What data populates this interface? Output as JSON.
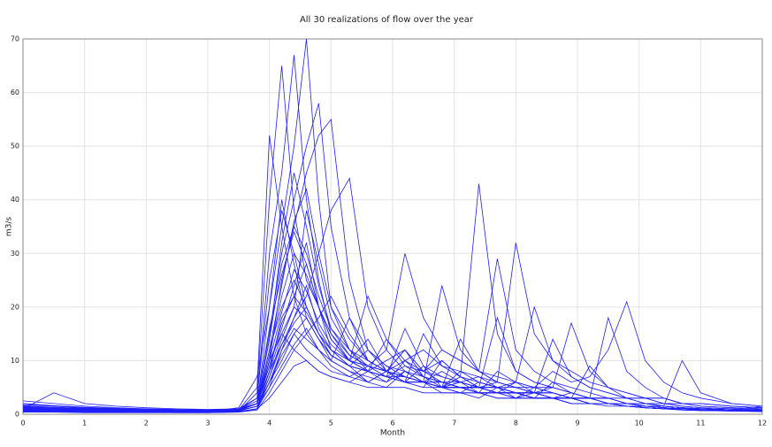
{
  "chart_data": {
    "type": "line",
    "title": "All 30 realizations of flow over the year",
    "x_label": "Month",
    "y_label": "m3/s",
    "color": "#1f1fff",
    "grid": true,
    "xlim": [
      0,
      12
    ],
    "xticks": [
      0,
      1,
      2,
      3,
      4,
      5,
      6,
      7,
      8,
      9,
      10,
      11,
      12
    ],
    "ylim": [
      0,
      70
    ],
    "yticks": [
      0,
      10,
      20,
      30,
      40,
      50,
      60,
      70
    ],
    "x": [
      0,
      0.5,
      1,
      1.5,
      2,
      2.5,
      3,
      3.5,
      3.8,
      4,
      4.2,
      4.4,
      4.6,
      4.8,
      5,
      5.3,
      5.6,
      5.9,
      6.2,
      6.5,
      6.8,
      7.1,
      7.4,
      7.7,
      8,
      8.3,
      8.6,
      8.9,
      9.2,
      9.5,
      9.8,
      10.1,
      10.4,
      10.7,
      11,
      11.5,
      12
    ],
    "series": [
      {
        "values": [
          2,
          1.5,
          1.2,
          1,
          0.8,
          0.6,
          0.5,
          0.6,
          2,
          20,
          35,
          50,
          70,
          40,
          20,
          12,
          8,
          6,
          10,
          7,
          5,
          4,
          6,
          5,
          3,
          4,
          3,
          2,
          2,
          1.5,
          1.5,
          1.2,
          1,
          1,
          0.8,
          0.7,
          0.6
        ]
      },
      {
        "values": [
          1.5,
          1.2,
          1,
          0.8,
          0.7,
          0.6,
          0.5,
          0.8,
          3,
          30,
          45,
          67,
          40,
          25,
          15,
          10,
          14,
          8,
          6,
          9,
          5,
          6,
          4,
          3,
          3,
          5,
          4,
          3,
          2,
          2,
          1.5,
          1.2,
          1,
          1,
          0.8,
          0.6,
          1
        ]
      },
      {
        "values": [
          1,
          0.8,
          0.7,
          0.6,
          0.5,
          0.5,
          0.4,
          0.6,
          4,
          40,
          65,
          38,
          25,
          20,
          12,
          9,
          6,
          8,
          12,
          7,
          6,
          5,
          4,
          8,
          6,
          4,
          3,
          3,
          2,
          2,
          1.5,
          1.2,
          1,
          0.8,
          0.7,
          0.6,
          0.5
        ]
      },
      {
        "values": [
          1.2,
          1,
          0.9,
          0.8,
          0.7,
          0.6,
          0.6,
          1,
          3,
          15,
          30,
          40,
          50,
          58,
          35,
          18,
          10,
          8,
          6,
          5,
          10,
          7,
          5,
          4,
          4,
          3,
          6,
          4,
          3,
          2,
          2,
          1.5,
          1.2,
          1,
          1,
          0.8,
          0.7
        ]
      },
      {
        "values": [
          0.8,
          0.7,
          0.6,
          0.5,
          0.5,
          0.4,
          0.4,
          0.5,
          1,
          10,
          25,
          35,
          45,
          52,
          55,
          25,
          12,
          9,
          7,
          6,
          5,
          8,
          6,
          5,
          4,
          3,
          3,
          4,
          3,
          2,
          2,
          1.5,
          1.2,
          1,
          0.8,
          0.7,
          0.6
        ]
      },
      {
        "values": [
          1,
          0.9,
          0.8,
          0.7,
          0.6,
          0.5,
          0.5,
          0.8,
          5,
          52,
          35,
          22,
          15,
          12,
          10,
          8,
          6,
          5,
          8,
          6,
          4,
          4,
          3,
          5,
          4,
          3,
          3,
          2,
          2,
          2,
          1.5,
          1.2,
          1,
          0.8,
          0.7,
          0.6,
          0.5
        ]
      },
      {
        "values": [
          0.6,
          0.5,
          0.5,
          0.4,
          0.4,
          0.4,
          0.4,
          0.5,
          1,
          5,
          12,
          18,
          22,
          30,
          38,
          44,
          20,
          12,
          8,
          6,
          5,
          7,
          5,
          4,
          4,
          3,
          3,
          2,
          2,
          2,
          1.5,
          1.5,
          1.2,
          1,
          1,
          0.8,
          0.7
        ]
      },
      {
        "values": [
          1.5,
          1.2,
          1,
          0.9,
          0.8,
          0.7,
          0.6,
          0.8,
          2,
          8,
          15,
          12,
          10,
          8,
          7,
          6,
          8,
          10,
          12,
          8,
          10,
          7,
          43,
          15,
          8,
          6,
          5,
          4,
          3,
          3,
          2,
          2,
          1.5,
          1.2,
          1,
          0.8,
          0.7
        ]
      },
      {
        "values": [
          0.5,
          0.5,
          0.4,
          0.4,
          0.4,
          0.3,
          0.3,
          0.4,
          1,
          6,
          10,
          15,
          12,
          10,
          8,
          7,
          9,
          8,
          10,
          12,
          9,
          8,
          7,
          6,
          32,
          15,
          10,
          8,
          6,
          5,
          4,
          3,
          3,
          2,
          2,
          1.5,
          1.2
        ]
      },
      {
        "values": [
          1,
          0.9,
          0.8,
          0.7,
          0.6,
          0.5,
          0.5,
          0.7,
          2,
          12,
          20,
          25,
          20,
          15,
          12,
          10,
          9,
          12,
          30,
          18,
          12,
          10,
          8,
          7,
          6,
          5,
          5,
          4,
          3,
          3,
          2,
          2,
          1.5,
          1.2,
          1,
          0.8,
          0.7
        ]
      },
      {
        "values": [
          0.7,
          0.6,
          0.6,
          0.5,
          0.5,
          0.4,
          0.4,
          0.5,
          1,
          8,
          18,
          22,
          28,
          20,
          14,
          10,
          8,
          7,
          9,
          8,
          12,
          10,
          8,
          29,
          12,
          8,
          6,
          5,
          4,
          3,
          3,
          2,
          2,
          1.5,
          1.2,
          1,
          0.8
        ]
      },
      {
        "values": [
          1.2,
          1,
          0.9,
          0.8,
          0.7,
          0.6,
          0.5,
          0.7,
          2,
          10,
          15,
          20,
          18,
          14,
          10,
          8,
          7,
          6,
          8,
          6,
          5,
          6,
          7,
          5,
          6,
          5,
          8,
          6,
          7,
          12,
          21,
          10,
          6,
          4,
          3,
          2,
          1.5
        ]
      },
      {
        "values": [
          2.5,
          2,
          1.5,
          1.2,
          1,
          0.9,
          0.8,
          1,
          3,
          25,
          38,
          30,
          20,
          15,
          12,
          10,
          22,
          14,
          10,
          8,
          7,
          6,
          5,
          5,
          4,
          4,
          3,
          3,
          3,
          2,
          2,
          1.5,
          1.2,
          1,
          1,
          0.8,
          0.7
        ]
      },
      {
        "values": [
          0.4,
          0.4,
          0.3,
          0.3,
          0.3,
          0.3,
          0.3,
          0.4,
          0.8,
          4,
          8,
          12,
          15,
          18,
          22,
          15,
          10,
          8,
          7,
          6,
          8,
          6,
          5,
          6,
          5,
          4,
          4,
          3,
          3,
          3,
          2,
          2,
          1.5,
          1.2,
          1,
          0.8,
          1.5
        ]
      },
      {
        "values": [
          1,
          4,
          2,
          1.5,
          1.2,
          1,
          0.9,
          1,
          2,
          14,
          28,
          35,
          30,
          22,
          16,
          12,
          10,
          8,
          7,
          6,
          5,
          5,
          4,
          4,
          3,
          3,
          3,
          2,
          2,
          2,
          1.5,
          1.2,
          1,
          1,
          0.8,
          0.7,
          0.6
        ]
      },
      {
        "values": [
          0.6,
          0.5,
          0.5,
          0.5,
          0.4,
          0.4,
          0.4,
          0.5,
          1,
          7,
          14,
          20,
          38,
          28,
          18,
          12,
          9,
          7,
          6,
          15,
          9,
          7,
          6,
          5,
          5,
          4,
          4,
          3,
          3,
          2,
          2,
          2,
          1.5,
          1.2,
          1,
          0.8,
          0.7
        ]
      },
      {
        "values": [
          1.8,
          1.5,
          1.2,
          1,
          0.9,
          0.8,
          0.7,
          0.9,
          2,
          9,
          16,
          24,
          32,
          20,
          14,
          10,
          8,
          7,
          6,
          6,
          24,
          12,
          8,
          6,
          5,
          4,
          4,
          3,
          3,
          2,
          2,
          1.5,
          1.2,
          1,
          1,
          0.8,
          0.7
        ]
      },
      {
        "values": [
          0.9,
          0.8,
          0.7,
          0.6,
          0.6,
          0.5,
          0.5,
          1.2,
          7,
          20,
          40,
          28,
          18,
          14,
          11,
          9,
          8,
          14,
          9,
          7,
          6,
          5,
          5,
          18,
          8,
          6,
          5,
          4,
          3,
          3,
          2,
          2,
          1.5,
          1.2,
          1,
          0.8,
          0.7
        ]
      },
      {
        "values": [
          1.3,
          1.1,
          1,
          0.9,
          0.8,
          0.7,
          0.6,
          0.8,
          2,
          11,
          22,
          30,
          26,
          20,
          15,
          11,
          9,
          8,
          7,
          6,
          6,
          5,
          5,
          4,
          6,
          20,
          10,
          7,
          5,
          4,
          3,
          3,
          2,
          2,
          1.5,
          1.2,
          1
        ]
      },
      {
        "values": [
          0.5,
          0.5,
          0.5,
          0.4,
          0.4,
          0.4,
          0.4,
          0.6,
          1.5,
          6,
          12,
          16,
          14,
          12,
          10,
          18,
          12,
          9,
          8,
          7,
          6,
          6,
          5,
          5,
          4,
          4,
          5,
          17,
          8,
          5,
          4,
          3,
          3,
          2,
          2,
          1.5,
          1.2
        ]
      },
      {
        "values": [
          1.1,
          1,
          0.9,
          0.8,
          0.7,
          0.6,
          0.6,
          0.8,
          2,
          8,
          13,
          18,
          24,
          16,
          12,
          9,
          8,
          7,
          6,
          6,
          5,
          5,
          4,
          4,
          4,
          3,
          3,
          3,
          3,
          18,
          8,
          5,
          3,
          2,
          2,
          1.5,
          1.2
        ]
      },
      {
        "values": [
          2,
          1.6,
          1.3,
          1.1,
          0.9,
          0.8,
          0.7,
          0.9,
          2.5,
          16,
          26,
          34,
          28,
          20,
          14,
          10,
          9,
          8,
          12,
          8,
          6,
          5,
          5,
          4,
          4,
          3,
          3,
          3,
          2,
          2,
          2,
          1.5,
          1.5,
          10,
          4,
          2,
          1.5
        ]
      },
      {
        "values": [
          0.8,
          0.7,
          0.6,
          0.6,
          0.5,
          0.5,
          0.5,
          0.6,
          1.5,
          5,
          9,
          13,
          16,
          12,
          9,
          7,
          6,
          8,
          6,
          5,
          5,
          4,
          4,
          4,
          3,
          3,
          3,
          3,
          2,
          2,
          2,
          1.5,
          1.2,
          1,
          1,
          0.8,
          0.7
        ]
      },
      {
        "values": [
          1.4,
          1.2,
          1,
          0.9,
          0.8,
          0.7,
          0.6,
          0.8,
          2,
          12,
          24,
          36,
          42,
          30,
          20,
          14,
          10,
          8,
          7,
          6,
          5,
          14,
          8,
          6,
          5,
          5,
          4,
          3,
          3,
          2,
          2,
          2,
          1.5,
          1.2,
          1,
          0.8,
          0.7
        ]
      },
      {
        "values": [
          0.7,
          0.6,
          0.6,
          0.5,
          0.5,
          0.4,
          0.4,
          0.6,
          1.5,
          7,
          13,
          17,
          20,
          15,
          11,
          9,
          8,
          7,
          16,
          9,
          7,
          6,
          5,
          5,
          4,
          4,
          3,
          3,
          3,
          2,
          2,
          2,
          1.5,
          1.2,
          1,
          0.8,
          0.7
        ]
      },
      {
        "values": [
          1,
          0.9,
          0.8,
          0.7,
          0.6,
          0.6,
          0.5,
          0.7,
          2,
          9,
          17,
          22,
          19,
          15,
          11,
          9,
          8,
          7,
          7,
          6,
          6,
          5,
          5,
          4,
          4,
          4,
          14,
          7,
          5,
          4,
          3,
          3,
          2,
          2,
          1.5,
          1.2,
          1
        ]
      },
      {
        "values": [
          1.6,
          1.3,
          1.1,
          1,
          0.9,
          0.8,
          0.7,
          0.9,
          2,
          14,
          32,
          45,
          35,
          24,
          16,
          11,
          9,
          8,
          7,
          6,
          5,
          5,
          4,
          4,
          4,
          3,
          3,
          3,
          2,
          2,
          2,
          1.5,
          1.2,
          1,
          1,
          0.8,
          0.7
        ]
      },
      {
        "values": [
          0.9,
          0.8,
          0.7,
          0.6,
          0.6,
          0.5,
          0.5,
          0.7,
          1.5,
          6,
          11,
          15,
          18,
          14,
          11,
          9,
          12,
          8,
          7,
          6,
          5,
          5,
          4,
          4,
          4,
          3,
          3,
          3,
          2,
          2,
          2,
          1.5,
          1.2,
          1,
          1,
          0.8,
          0.7
        ]
      },
      {
        "values": [
          1.2,
          1,
          0.9,
          0.8,
          0.7,
          0.6,
          0.6,
          0.8,
          2,
          10,
          19,
          27,
          23,
          17,
          13,
          10,
          8,
          7,
          6,
          6,
          5,
          5,
          5,
          4,
          4,
          4,
          3,
          3,
          9,
          5,
          3,
          2,
          2,
          1.5,
          1.2,
          1,
          0.8
        ]
      },
      {
        "values": [
          0.6,
          0.5,
          0.5,
          0.5,
          0.4,
          0.4,
          0.4,
          0.5,
          1,
          3,
          6,
          9,
          10,
          8,
          7,
          6,
          5,
          5,
          5,
          4,
          4,
          4,
          4,
          3,
          3,
          3,
          3,
          2,
          2,
          2,
          1.5,
          1.5,
          1.2,
          1,
          1,
          0.8,
          0.7
        ]
      }
    ]
  }
}
